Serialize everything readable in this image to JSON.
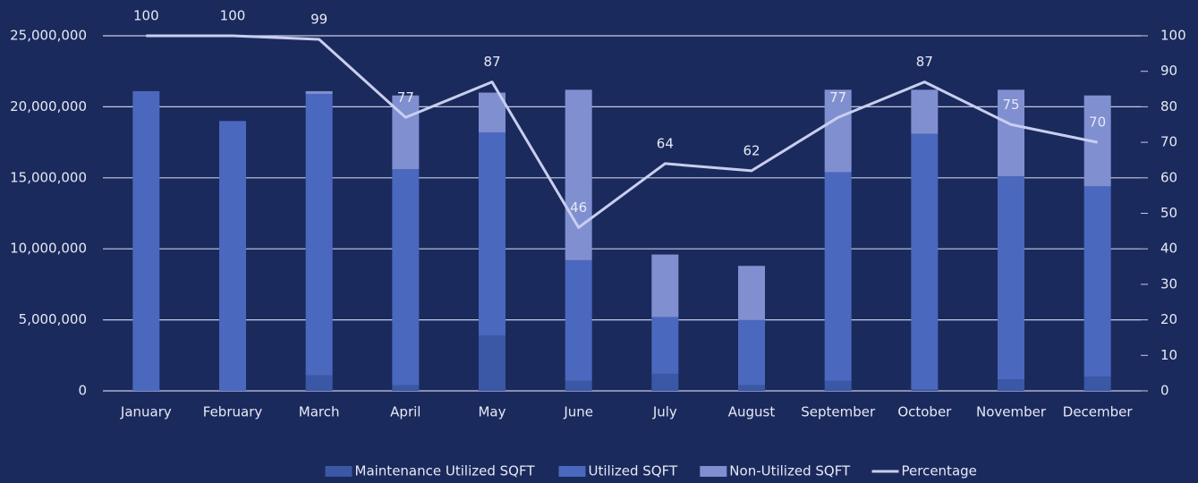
{
  "chart_data": {
    "type": "combo",
    "categories": [
      "January",
      "February",
      "March",
      "April",
      "May",
      "June",
      "July",
      "August",
      "September",
      "October",
      "November",
      "December"
    ],
    "series": [
      {
        "name": "Maintenance Utilized SQFT",
        "type": "bar",
        "color": "#3a58a6",
        "values": [
          0,
          0,
          1100000,
          400000,
          3900000,
          700000,
          1200000,
          400000,
          700000,
          100000,
          800000,
          1000000
        ]
      },
      {
        "name": "Utilized SQFT",
        "type": "bar",
        "color": "#4a68be",
        "values": [
          21100000,
          19000000,
          19800000,
          15200000,
          14300000,
          8500000,
          4000000,
          4600000,
          14700000,
          18000000,
          14300000,
          13400000
        ]
      },
      {
        "name": "Non-Utilized SQFT",
        "type": "bar",
        "color": "#7f8fd0",
        "values": [
          0,
          0,
          200000,
          5200000,
          2800000,
          12000000,
          4400000,
          3800000,
          5800000,
          3100000,
          6100000,
          6400000
        ]
      },
      {
        "name": "Percentage",
        "type": "line",
        "axis": "y2",
        "color": "#c9cef0",
        "values": [
          100,
          100,
          99,
          77,
          87,
          46,
          64,
          62,
          77,
          87,
          75,
          70
        ]
      }
    ],
    "ylim": [
      0,
      25000000
    ],
    "yticks": [
      0,
      {
        "value": 5000000,
        "label": "5,000,000"
      },
      {
        "value": 10000000,
        "label": "10,000,000"
      },
      {
        "value": 15000000,
        "label": "15,000,000"
      },
      {
        "value": 20000000,
        "label": "20,000,000"
      },
      {
        "value": 25000000,
        "label": "25,000,000"
      }
    ],
    "y2lim": [
      0,
      100
    ],
    "y2ticks": [
      0,
      10,
      20,
      30,
      40,
      50,
      60,
      70,
      80,
      90,
      100
    ],
    "grid": true,
    "legend": "bottom"
  }
}
